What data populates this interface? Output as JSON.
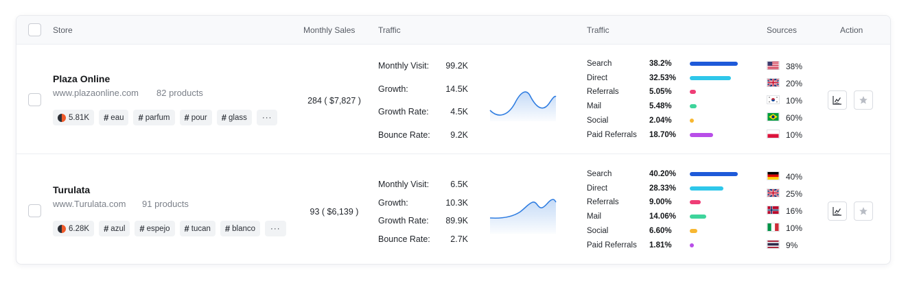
{
  "header": {
    "store": "Store",
    "monthly_sales": "Monthly Sales",
    "traffic": "Traffic",
    "traffic2": "Traffic",
    "sources": "Sources",
    "action": "Action"
  },
  "rows": [
    {
      "name": "Plaza Online",
      "url": "www.plazaonline.com",
      "products": "82 products",
      "badge": "5.81K",
      "tags": [
        "eau",
        "parfum",
        "pour",
        "glass"
      ],
      "more": "···",
      "sales": "284  ( $7,827 )",
      "traffic": [
        {
          "label": "Monthly Visit:",
          "value": "99.2K"
        },
        {
          "label": "Growth:",
          "value": "14.5K"
        },
        {
          "label": "Growth Rate:",
          "value": "4.5K"
        },
        {
          "label": "Bounce Rate:",
          "value": "9.2K"
        }
      ],
      "channels": [
        {
          "label": "Search",
          "pct": "38.2%",
          "share": 0.382,
          "color": "#1e5ad9"
        },
        {
          "label": "Direct",
          "pct": "32.53%",
          "share": 0.3253,
          "color": "#2ec7ea"
        },
        {
          "label": "Referrals",
          "pct": "5.05%",
          "share": 0.0505,
          "color": "#ef3d76"
        },
        {
          "label": "Mail",
          "pct": "5.48%",
          "share": 0.0548,
          "color": "#3ed49b"
        },
        {
          "label": "Social",
          "pct": "2.04%",
          "share": 0.0204,
          "color": "#f7b731"
        },
        {
          "label": "Paid Referrals",
          "pct": "18.70%",
          "share": 0.187,
          "color": "#b84ee8"
        }
      ],
      "countries": [
        {
          "flag": "us-flag-icon",
          "pct": "38%"
        },
        {
          "flag": "uk-flag-icon",
          "pct": "20%"
        },
        {
          "flag": "kr-flag-icon",
          "pct": "10%"
        },
        {
          "flag": "br-flag-icon",
          "pct": "60%"
        },
        {
          "flag": "pl-flag-icon",
          "pct": "10%"
        }
      ]
    },
    {
      "name": "Turulata",
      "url": "www.Turulata.com",
      "products": "91 products",
      "badge": "6.28K",
      "tags": [
        "azul",
        "espejo",
        "tucan",
        "blanco"
      ],
      "more": "···",
      "sales": "93  ( $6,139 )",
      "traffic": [
        {
          "label": "Monthly Visit:",
          "value": "6.5K"
        },
        {
          "label": "Growth:",
          "value": "10.3K"
        },
        {
          "label": "Growth Rate:",
          "value": "89.9K"
        },
        {
          "label": "Bounce Rate:",
          "value": "2.7K"
        }
      ],
      "channels": [
        {
          "label": "Search",
          "pct": "40.20%",
          "share": 0.402,
          "color": "#1e5ad9"
        },
        {
          "label": "Direct",
          "pct": "28.33%",
          "share": 0.2833,
          "color": "#2ec7ea"
        },
        {
          "label": "Referrals",
          "pct": "9.00%",
          "share": 0.09,
          "color": "#ef3d76"
        },
        {
          "label": "Mail",
          "pct": "14.06%",
          "share": 0.1406,
          "color": "#3ed49b"
        },
        {
          "label": "Social",
          "pct": "6.60%",
          "share": 0.066,
          "color": "#f7b731"
        },
        {
          "label": "Paid Referrals",
          "pct": "1.81%",
          "share": 0.0181,
          "color": "#b84ee8"
        }
      ],
      "countries": [
        {
          "flag": "de-flag-icon",
          "pct": "40%"
        },
        {
          "flag": "uk-flag-icon",
          "pct": "25%"
        },
        {
          "flag": "no-flag-icon",
          "pct": "16%"
        },
        {
          "flag": "it-flag-icon",
          "pct": "10%"
        },
        {
          "flag": "th-flag-icon",
          "pct": "9%"
        }
      ]
    }
  ]
}
